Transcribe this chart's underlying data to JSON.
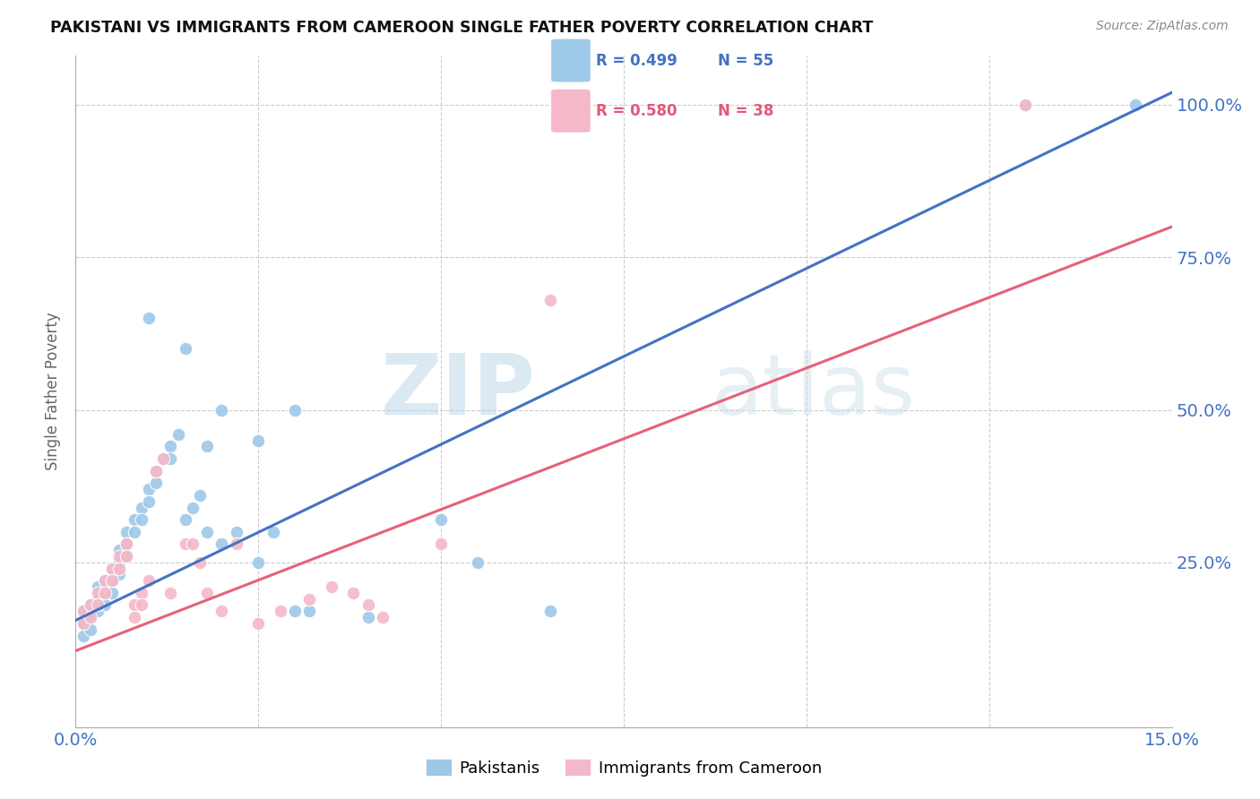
{
  "title": "PAKISTANI VS IMMIGRANTS FROM CAMEROON SINGLE FATHER POVERTY CORRELATION CHART",
  "source": "Source: ZipAtlas.com",
  "ylabel": "Single Father Poverty",
  "xlim": [
    0.0,
    0.15
  ],
  "ylim": [
    -0.02,
    1.08
  ],
  "watermark_zip": "ZIP",
  "watermark_atlas": "atlas",
  "legend_r1": "R = 0.499",
  "legend_n1": "N = 55",
  "legend_r2": "R = 0.580",
  "legend_n2": "N = 38",
  "color_blue": "#9ec8e8",
  "color_pink": "#f4b8c8",
  "color_blue_line": "#4472c4",
  "color_pink_line": "#e8607a",
  "color_blue_text": "#4472c4",
  "color_pink_text": "#e05a7a",
  "blue_line_x0": 0.0,
  "blue_line_y0": 0.155,
  "blue_line_x1": 0.15,
  "blue_line_y1": 1.02,
  "pink_line_x0": 0.0,
  "pink_line_y0": 0.105,
  "pink_line_x1": 0.15,
  "pink_line_y1": 0.8,
  "blue_pts_x": [
    0.001,
    0.001,
    0.001,
    0.002,
    0.002,
    0.002,
    0.003,
    0.003,
    0.003,
    0.004,
    0.004,
    0.004,
    0.005,
    0.005,
    0.005,
    0.006,
    0.006,
    0.006,
    0.007,
    0.007,
    0.007,
    0.008,
    0.008,
    0.009,
    0.009,
    0.01,
    0.01,
    0.011,
    0.011,
    0.012,
    0.013,
    0.013,
    0.014,
    0.015,
    0.016,
    0.017,
    0.018,
    0.02,
    0.022,
    0.025,
    0.027,
    0.03,
    0.032,
    0.04,
    0.05,
    0.055,
    0.065,
    0.03,
    0.025,
    0.02,
    0.018,
    0.015,
    0.01,
    0.13,
    0.145
  ],
  "blue_pts_y": [
    0.17,
    0.15,
    0.13,
    0.18,
    0.16,
    0.14,
    0.19,
    0.21,
    0.17,
    0.22,
    0.2,
    0.18,
    0.24,
    0.22,
    0.2,
    0.27,
    0.25,
    0.23,
    0.3,
    0.28,
    0.26,
    0.32,
    0.3,
    0.34,
    0.32,
    0.37,
    0.35,
    0.4,
    0.38,
    0.42,
    0.44,
    0.42,
    0.46,
    0.32,
    0.34,
    0.36,
    0.3,
    0.28,
    0.3,
    0.25,
    0.3,
    0.17,
    0.17,
    0.16,
    0.32,
    0.25,
    0.17,
    0.5,
    0.45,
    0.5,
    0.44,
    0.6,
    0.65,
    1.0,
    1.0
  ],
  "pink_pts_x": [
    0.001,
    0.001,
    0.002,
    0.002,
    0.003,
    0.003,
    0.004,
    0.004,
    0.005,
    0.005,
    0.006,
    0.006,
    0.007,
    0.007,
    0.008,
    0.008,
    0.009,
    0.009,
    0.01,
    0.011,
    0.012,
    0.013,
    0.015,
    0.016,
    0.017,
    0.018,
    0.02,
    0.022,
    0.025,
    0.028,
    0.032,
    0.035,
    0.038,
    0.04,
    0.042,
    0.05,
    0.065,
    0.13
  ],
  "pink_pts_y": [
    0.17,
    0.15,
    0.18,
    0.16,
    0.2,
    0.18,
    0.22,
    0.2,
    0.24,
    0.22,
    0.26,
    0.24,
    0.28,
    0.26,
    0.18,
    0.16,
    0.2,
    0.18,
    0.22,
    0.4,
    0.42,
    0.2,
    0.28,
    0.28,
    0.25,
    0.2,
    0.17,
    0.28,
    0.15,
    0.17,
    0.19,
    0.21,
    0.2,
    0.18,
    0.16,
    0.28,
    0.68,
    1.0
  ]
}
